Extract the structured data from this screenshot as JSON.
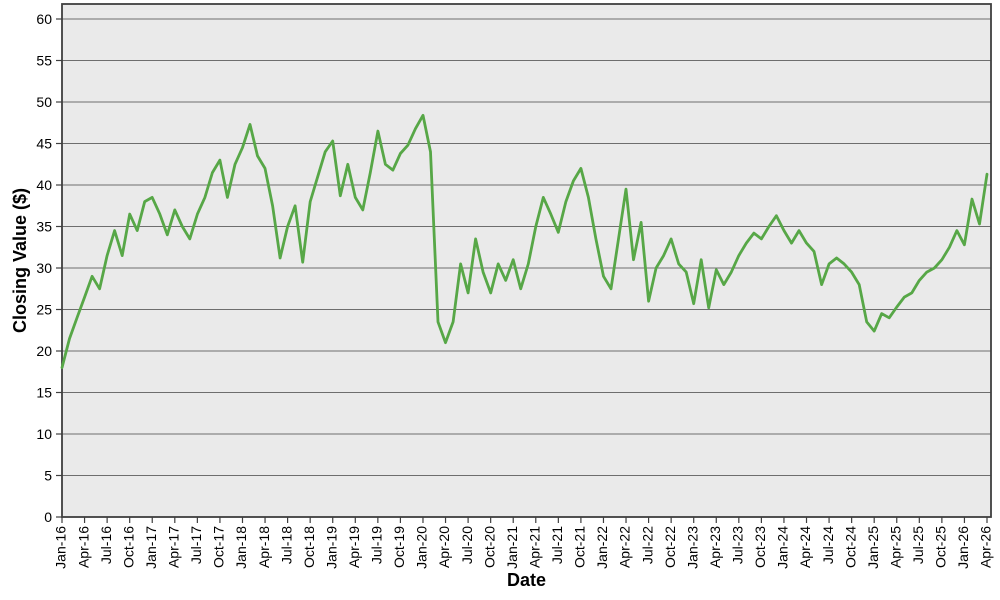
{
  "chart_data": {
    "type": "line",
    "title": "",
    "xlabel": "Date",
    "ylabel": "Closing Value ($)",
    "x_unit": "monthly samples from Jan-2016 to Apr-2026",
    "x_tick_labels": [
      "Jan-16",
      "Apr-16",
      "Jul-16",
      "Oct-16",
      "Jan-17",
      "Apr-17",
      "Jul-17",
      "Oct-17",
      "Jan-18",
      "Apr-18",
      "Jul-18",
      "Oct-18",
      "Jan-19",
      "Apr-19",
      "Jul-19",
      "Oct-19",
      "Jan-20",
      "Apr-20",
      "Jul-20",
      "Oct-20",
      "Jan-21",
      "Apr-21",
      "Jul-21",
      "Oct-21",
      "Jan-22",
      "Apr-22",
      "Jul-22",
      "Oct-22",
      "Jan-23",
      "Apr-23",
      "Jul-23",
      "Oct-23",
      "Jan-24",
      "Apr-24",
      "Jul-24",
      "Oct-24",
      "Jan-25",
      "Apr-25",
      "Jul-25",
      "Oct-25",
      "Jan-26",
      "Apr-26"
    ],
    "months_per_tick": 3,
    "y_ticks": [
      0,
      5,
      10,
      15,
      20,
      25,
      30,
      35,
      40,
      45,
      50,
      55,
      60
    ],
    "ylim": [
      0,
      62
    ],
    "grid": "horizontal",
    "legend": "none",
    "series": [
      {
        "name": "Closing Value",
        "color": "#57A747",
        "values": [
          18.0,
          21.5,
          24.0,
          26.5,
          29.0,
          27.5,
          31.5,
          34.5,
          31.5,
          36.5,
          34.5,
          38.0,
          38.5,
          36.5,
          34.0,
          37.0,
          35.0,
          33.5,
          36.5,
          38.5,
          41.5,
          43.0,
          38.5,
          42.5,
          44.5,
          47.3,
          43.5,
          42.0,
          37.5,
          31.2,
          35.0,
          37.5,
          30.7,
          38.0,
          41.0,
          44.0,
          45.3,
          38.7,
          42.5,
          38.5,
          37.0,
          41.5,
          46.5,
          42.5,
          41.8,
          43.8,
          44.8,
          46.8,
          48.4,
          44.0,
          23.5,
          21.0,
          23.5,
          30.5,
          27.0,
          33.5,
          29.5,
          27.0,
          30.5,
          28.5,
          31.0,
          27.5,
          30.5,
          35.0,
          38.5,
          36.5,
          34.3,
          38.0,
          40.5,
          42.0,
          38.5,
          33.5,
          29.0,
          27.5,
          33.5,
          39.5,
          31.0,
          35.5,
          26.0,
          30.0,
          31.5,
          33.5,
          30.5,
          29.5,
          25.7,
          31.0,
          25.2,
          29.8,
          28.0,
          29.5,
          31.5,
          33.0,
          34.2,
          33.5,
          35.0,
          36.3,
          34.5,
          33.0,
          34.5,
          33.0,
          32.0,
          28.0,
          30.5,
          31.2,
          30.5,
          29.5,
          28.0,
          23.5,
          22.4,
          24.5,
          24.0,
          25.3,
          26.5,
          27.0,
          28.5,
          29.5,
          30.0,
          31.0,
          32.5,
          34.5,
          32.8,
          38.3,
          35.3,
          41.3
        ]
      }
    ]
  },
  "style": {
    "line_color": "#57A747",
    "plot_bg": "#EAEAEA",
    "page_bg": "#FFFFFF",
    "gridline_color": "#6E6E6E",
    "border_color": "#3F3F3F",
    "tick_color": "#3F3F3F",
    "label_color": "#000000"
  }
}
